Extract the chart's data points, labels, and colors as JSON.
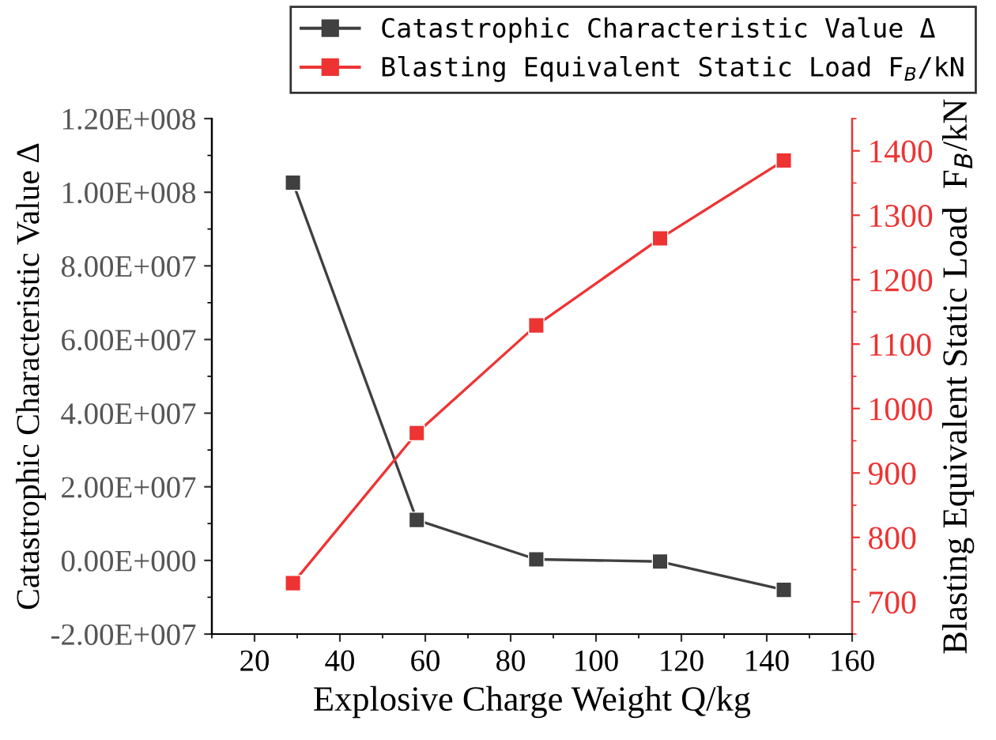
{
  "chart_data": {
    "type": "line",
    "xlabel": "Explosive Charge Weight Q/kg",
    "ylabel": "Catastrophic Characteristic Value Δ",
    "y2label": "Blasting Equivalent Static Load  F$_{B}$/kN",
    "x": [
      29,
      58,
      86,
      115,
      144
    ],
    "series": [
      {
        "name": "Catastrophic Characteristic Value Δ",
        "color": "#404040",
        "values": [
          102600000,
          11000000,
          300000,
          -300000,
          -8000000
        ]
      },
      {
        "name": "Blasting Equivalent Static Load F$_{B}$/kN",
        "color": "#ee3333",
        "axis": "y2",
        "values": [
          729,
          962,
          1129,
          1264,
          1385
        ]
      }
    ],
    "xlim": [
      10,
      160
    ],
    "xticks": [
      20,
      40,
      60,
      80,
      100,
      120,
      140,
      160
    ],
    "ylim": [
      -20000000,
      120000000
    ],
    "yticks": [
      {
        "value": -20000000,
        "label": "-2.00E+007"
      },
      {
        "value": 0,
        "label": "0.00E+000"
      },
      {
        "value": 20000000,
        "label": "2.00E+007"
      },
      {
        "value": 40000000,
        "label": "4.00E+007"
      },
      {
        "value": 60000000,
        "label": "6.00E+007"
      },
      {
        "value": 80000000,
        "label": "8.00E+007"
      },
      {
        "value": 100000000,
        "label": "1.00E+008"
      },
      {
        "value": 120000000,
        "label": "1.20E+008"
      }
    ],
    "y2lim": [
      650,
      1450
    ],
    "y2ticks": [
      700,
      800,
      900,
      1000,
      1100,
      1200,
      1300,
      1400
    ],
    "marker": "square",
    "line_style": "solid",
    "legend": "top right",
    "grid": false
  }
}
